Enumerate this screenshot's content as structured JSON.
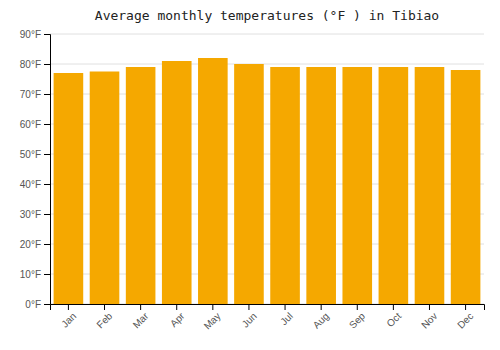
{
  "chart_data": {
    "type": "bar",
    "title": "Average monthly temperatures (°F ) in Tibiao",
    "categories": [
      "Jan",
      "Feb",
      "Mar",
      "Apr",
      "May",
      "Jun",
      "Jul",
      "Aug",
      "Sep",
      "Oct",
      "Nov",
      "Dec"
    ],
    "values": [
      77.0,
      77.5,
      79.0,
      81.0,
      82.0,
      80.0,
      79.0,
      79.0,
      79.0,
      79.0,
      79.0,
      78.0
    ],
    "color": "#F5A800",
    "ylim": [
      0,
      90
    ],
    "yticks": [
      {
        "value": 0,
        "label": "0°F"
      },
      {
        "value": 10,
        "label": "10°F"
      },
      {
        "value": 20,
        "label": "20°F"
      },
      {
        "value": 30,
        "label": "30°F"
      },
      {
        "value": 40,
        "label": "40°F"
      },
      {
        "value": 50,
        "label": "50°F"
      },
      {
        "value": 60,
        "label": "60°F"
      },
      {
        "value": 70,
        "label": "70°F"
      },
      {
        "value": 80,
        "label": "80°F"
      },
      {
        "value": 90,
        "label": "90°F"
      }
    ],
    "grid": true
  }
}
